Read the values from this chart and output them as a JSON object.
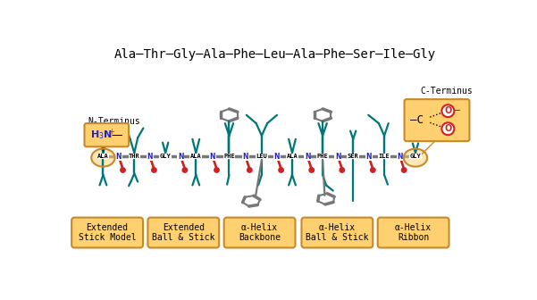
{
  "title": "Ala–Thr–Gly–Ala–Phe–Leu–Ala–Phe–Ser–Ile–Gly",
  "bg_color": "#ffffff",
  "button_labels": [
    "Extended\nStick Model",
    "Extended\nBall & Stick",
    "α-Helix\nBackbone",
    "α-Helix\nBall & Stick",
    "α-Helix\nRibbon"
  ],
  "button_color": "#FFD070",
  "button_edge": "#C8892A",
  "residue_labels": [
    "ALA",
    "THR",
    "GLY",
    "ALA",
    "PHE",
    "LEU",
    "ALA",
    "PHE",
    "SER",
    "ILE",
    "GLY"
  ],
  "backbone_color": "#777777",
  "teal_color": "#007777",
  "red_color": "#cc2222",
  "blue_color": "#2222cc",
  "orange_color": "#FFD070",
  "n_terminus_box_color": "#FFD070",
  "c_terminus_box_color": "#FFD070"
}
